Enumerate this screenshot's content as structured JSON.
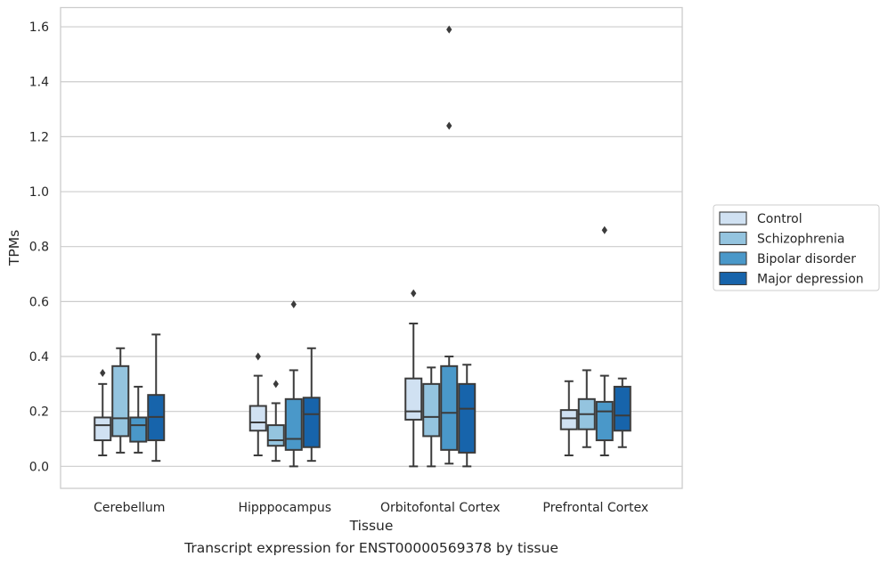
{
  "chart_data": {
    "type": "box",
    "caption": "Transcript expression for ENST00000569378 by tissue",
    "xlabel": "Tissue",
    "ylabel": "TPMs",
    "ylim": [
      -0.08,
      1.67
    ],
    "yticks": [
      "0.0",
      "0.2",
      "0.4",
      "0.6",
      "0.8",
      "1.0",
      "1.2",
      "1.4",
      "1.6"
    ],
    "grid": true,
    "legend_position": "right",
    "categories": [
      "Cerebellum",
      "Hipppocampus",
      "Orbitofontal Cortex",
      "Prefrontal Cortex"
    ],
    "series": [
      {
        "name": "Control",
        "color": "#d0e1f2",
        "boxes": [
          {
            "whislo": 0.04,
            "q1": 0.095,
            "med": 0.15,
            "q3": 0.178,
            "whishi": 0.3,
            "fliers": [
              0.34
            ]
          },
          {
            "whislo": 0.04,
            "q1": 0.13,
            "med": 0.16,
            "q3": 0.22,
            "whishi": 0.33,
            "fliers": [
              0.4
            ]
          },
          {
            "whislo": 0.0,
            "q1": 0.17,
            "med": 0.2,
            "q3": 0.32,
            "whishi": 0.52,
            "fliers": [
              0.63
            ]
          },
          {
            "whislo": 0.04,
            "q1": 0.135,
            "med": 0.175,
            "q3": 0.205,
            "whishi": 0.31,
            "fliers": []
          }
        ]
      },
      {
        "name": "Schizophrenia",
        "color": "#94c4df",
        "boxes": [
          {
            "whislo": 0.05,
            "q1": 0.11,
            "med": 0.175,
            "q3": 0.365,
            "whishi": 0.43,
            "fliers": []
          },
          {
            "whislo": 0.02,
            "q1": 0.075,
            "med": 0.095,
            "q3": 0.15,
            "whishi": 0.23,
            "fliers": [
              0.3
            ]
          },
          {
            "whislo": 0.0,
            "q1": 0.11,
            "med": 0.18,
            "q3": 0.3,
            "whishi": 0.36,
            "fliers": []
          },
          {
            "whislo": 0.07,
            "q1": 0.135,
            "med": 0.19,
            "q3": 0.245,
            "whishi": 0.35,
            "fliers": []
          }
        ]
      },
      {
        "name": "Bipolar disorder",
        "color": "#4a98c9",
        "boxes": [
          {
            "whislo": 0.05,
            "q1": 0.09,
            "med": 0.15,
            "q3": 0.178,
            "whishi": 0.29,
            "fliers": []
          },
          {
            "whislo": 0.0,
            "q1": 0.06,
            "med": 0.1,
            "q3": 0.245,
            "whishi": 0.35,
            "fliers": [
              0.59
            ]
          },
          {
            "whislo": 0.01,
            "q1": 0.06,
            "med": 0.195,
            "q3": 0.365,
            "whishi": 0.4,
            "fliers": [
              1.24,
              1.59
            ]
          },
          {
            "whislo": 0.04,
            "q1": 0.095,
            "med": 0.2,
            "q3": 0.235,
            "whishi": 0.33,
            "fliers": [
              0.86
            ]
          }
        ]
      },
      {
        "name": "Major depression",
        "color": "#1764ab",
        "boxes": [
          {
            "whislo": 0.02,
            "q1": 0.095,
            "med": 0.18,
            "q3": 0.26,
            "whishi": 0.48,
            "fliers": []
          },
          {
            "whislo": 0.02,
            "q1": 0.07,
            "med": 0.19,
            "q3": 0.25,
            "whishi": 0.43,
            "fliers": []
          },
          {
            "whislo": 0.0,
            "q1": 0.05,
            "med": 0.21,
            "q3": 0.3,
            "whishi": 0.37,
            "fliers": []
          },
          {
            "whislo": 0.07,
            "q1": 0.13,
            "med": 0.185,
            "q3": 0.29,
            "whishi": 0.32,
            "fliers": []
          }
        ]
      }
    ]
  }
}
